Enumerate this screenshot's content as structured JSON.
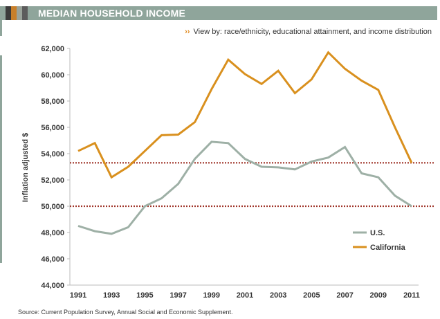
{
  "header": {
    "title": "MEDIAN HOUSEHOLD INCOME",
    "swatch_colors": [
      "#3b3b3b",
      "#c87f2a",
      "#9aa39a",
      "#5c5c5c"
    ],
    "bar_color": "#8fa59b"
  },
  "viewby": {
    "prefix": "View by:",
    "link1": "race/ethnicity",
    "sep1": ",",
    "link2": "educational attainment",
    "sep2": ", and",
    "link3": "income distribution"
  },
  "source": {
    "label": "Source:",
    "text": "Current Population Survey, Annual Social and Economic Supplement."
  },
  "chart_data": {
    "type": "line",
    "ylabel": "Inflation adjusted $",
    "xlabel": "",
    "title": "",
    "ylim": [
      44000,
      62000
    ],
    "yticks": [
      44000,
      46000,
      48000,
      50000,
      52000,
      54000,
      56000,
      58000,
      60000,
      62000
    ],
    "ytick_labels": [
      "44,000",
      "46,000",
      "48,000",
      "50,000",
      "52,000",
      "54,000",
      "56,000",
      "58,000",
      "60,000",
      "62,000"
    ],
    "xlim": [
      1991,
      2011
    ],
    "xticks": [
      1991,
      1993,
      1995,
      1997,
      1999,
      2001,
      2003,
      2005,
      2007,
      2009,
      2011
    ],
    "x": [
      1991,
      1992,
      1993,
      1994,
      1995,
      1996,
      1997,
      1998,
      1999,
      2000,
      2001,
      2002,
      2003,
      2004,
      2005,
      2006,
      2007,
      2008,
      2009,
      2010,
      2011
    ],
    "series": [
      {
        "name": "U.S.",
        "color": "#9eb0a6",
        "values": [
          48500,
          48100,
          47900,
          48400,
          50000,
          50600,
          51700,
          53600,
          54900,
          54800,
          53600,
          53000,
          52950,
          52800,
          53400,
          53700,
          54500,
          52500,
          52200,
          50800,
          50000
        ]
      },
      {
        "name": "California",
        "color": "#d9901e",
        "values": [
          54200,
          54800,
          52200,
          53000,
          54200,
          55400,
          55450,
          56400,
          58900,
          61150,
          60050,
          59300,
          60300,
          58600,
          59650,
          61700,
          60450,
          59550,
          58850,
          56000,
          53300
        ]
      }
    ],
    "reference_lines": [
      {
        "value": 53300,
        "color": "#a0362b"
      },
      {
        "value": 50000,
        "color": "#a0362b"
      }
    ],
    "legend": {
      "placement": "bottom-right"
    },
    "grid": false
  }
}
